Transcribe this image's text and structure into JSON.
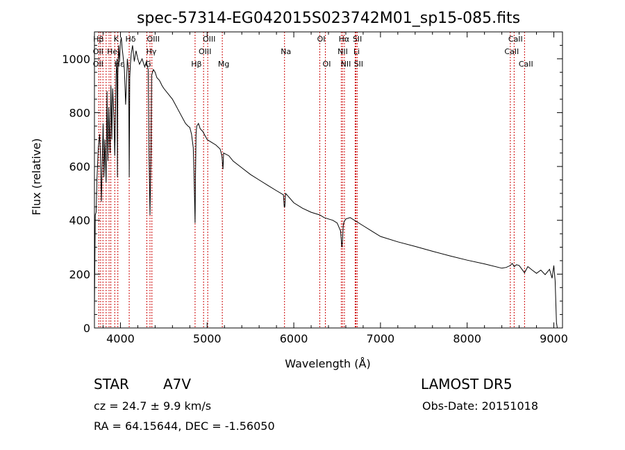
{
  "chart_data": {
    "type": "line",
    "title": "spec-57314-EG042015S023742M01_sp15-085.fits",
    "xlabel": "Wavelength (Å)",
    "ylabel": "Flux (relative)",
    "xlim": [
      3700,
      9100
    ],
    "ylim": [
      0,
      1100
    ],
    "xticks": [
      4000,
      5000,
      6000,
      7000,
      8000,
      9000
    ],
    "yticks": [
      0,
      200,
      400,
      600,
      800,
      1000
    ],
    "grid": false,
    "series": [
      {
        "name": "",
        "x": [
          3700,
          3710,
          3720,
          3730,
          3745,
          3760,
          3770,
          3780,
          3795,
          3800,
          3810,
          3820,
          3835,
          3845,
          3855,
          3865,
          3880,
          3890,
          3900,
          3910,
          3925,
          3935,
          3950,
          3960,
          3965,
          3970,
          3980,
          3990,
          4000,
          4010,
          4020,
          4030,
          4045,
          4060,
          4080,
          4095,
          4101,
          4108,
          4115,
          4125,
          4140,
          4160,
          4180,
          4200,
          4220,
          4250,
          4280,
          4300,
          4320,
          4330,
          4341,
          4352,
          4360,
          4380,
          4400,
          4420,
          4450,
          4480,
          4500,
          4550,
          4600,
          4650,
          4700,
          4750,
          4780,
          4800,
          4820,
          4840,
          4850,
          4861,
          4866,
          4872,
          4880,
          4900,
          4920,
          4950,
          5000,
          5050,
          5100,
          5150,
          5170,
          5183,
          5190,
          5250,
          5300,
          5400,
          5500,
          5600,
          5700,
          5800,
          5880,
          5890,
          5896,
          5905,
          5920,
          6000,
          6100,
          6200,
          6300,
          6350,
          6400,
          6450,
          6500,
          6540,
          6555,
          6563,
          6570,
          6580,
          6600,
          6650,
          6700,
          6800,
          6900,
          7000,
          7200,
          7400,
          7600,
          7800,
          8000,
          8200,
          8400,
          8450,
          8498,
          8520,
          8542,
          8570,
          8600,
          8662,
          8700,
          8750,
          8800,
          8850,
          8900,
          8950,
          8980,
          9000,
          9015,
          9030,
          9040
        ],
        "values": [
          70,
          420,
          430,
          560,
          670,
          720,
          640,
          470,
          690,
          760,
          560,
          700,
          540,
          880,
          620,
          820,
          650,
          900,
          700,
          890,
          780,
          640,
          940,
          1000,
          560,
          940,
          1050,
          990,
          1060,
          1080,
          1040,
          1010,
          960,
          830,
          1000,
          950,
          560,
          930,
          980,
          1020,
          1050,
          990,
          1030,
          1000,
          980,
          1000,
          970,
          990,
          960,
          640,
          420,
          650,
          940,
          960,
          950,
          930,
          920,
          900,
          890,
          870,
          850,
          820,
          790,
          760,
          750,
          745,
          720,
          670,
          560,
          390,
          560,
          720,
          750,
          760,
          740,
          730,
          700,
          690,
          680,
          665,
          640,
          590,
          650,
          640,
          620,
          595,
          570,
          550,
          530,
          510,
          495,
          450,
          450,
          500,
          495,
          465,
          445,
          430,
          420,
          410,
          405,
          400,
          390,
          360,
          300,
          330,
          380,
          395,
          405,
          410,
          400,
          380,
          360,
          340,
          320,
          303,
          285,
          268,
          252,
          238,
          222,
          225,
          232,
          240,
          228,
          235,
          232,
          205,
          228,
          215,
          203,
          215,
          198,
          218,
          185,
          232,
          175,
          20,
          0
        ],
        "color": "#000000"
      }
    ],
    "line_markers": {
      "color": "#cc0000",
      "lines": [
        {
          "label": "Hβ",
          "x": 3730,
          "row": 1
        },
        {
          "label": "OII",
          "x": 3727,
          "row": 2
        },
        {
          "label": "OII",
          "x": 3727,
          "row": 3
        },
        {
          "label": "K",
          "x": 3934,
          "row": 1
        },
        {
          "label": "Hδ",
          "x": 4101,
          "row": 1
        },
        {
          "label": "He",
          "x": 3889,
          "row": 2
        },
        {
          "label": "Hε",
          "x": 3970,
          "row": 3
        },
        {
          "label": "OIII",
          "x": 4363,
          "row": 1
        },
        {
          "label": "Hγ",
          "x": 4341,
          "row": 2
        },
        {
          "label": "G",
          "x": 4304,
          "row": 3
        },
        {
          "label": "OIII",
          "x": 5007,
          "row": 1
        },
        {
          "label": "OIII",
          "x": 4959,
          "row": 2
        },
        {
          "label": "Hβ",
          "x": 4861,
          "row": 3
        },
        {
          "label": "Mg",
          "x": 5175,
          "row": 3
        },
        {
          "label": "Na",
          "x": 5893,
          "row": 2
        },
        {
          "label": "OI",
          "x": 6300,
          "row": 1
        },
        {
          "label": "OI",
          "x": 6364,
          "row": 3
        },
        {
          "label": "Hα",
          "x": 6563,
          "row": 1
        },
        {
          "label": "SII",
          "x": 6717,
          "row": 1
        },
        {
          "label": "NII",
          "x": 6548,
          "row": 2
        },
        {
          "label": "Li",
          "x": 6708,
          "row": 2
        },
        {
          "label": "NII",
          "x": 6584,
          "row": 3
        },
        {
          "label": "SII",
          "x": 6731,
          "row": 3
        },
        {
          "label": "CaII",
          "x": 8542,
          "row": 1
        },
        {
          "label": "CaII",
          "x": 8498,
          "row": 2
        },
        {
          "label": "CaII",
          "x": 8662,
          "row": 3
        }
      ],
      "extra_x": [
        3750,
        3771,
        3798,
        3835,
        3869,
        3889,
        3934,
        3970,
        4101,
        4304,
        4341,
        4363,
        4861,
        4959,
        5007,
        5175,
        5893,
        6300,
        6364,
        6548,
        6563,
        6584,
        6708,
        6717,
        6731,
        8498,
        8542,
        8662
      ]
    }
  },
  "footer": {
    "object_class": "STAR",
    "subclass": "A7V",
    "survey": "LAMOST  DR5",
    "redshift_text": "cz = 24.7 ± 9.9 km/s",
    "obs_date": "Obs-Date: 20151018",
    "coords": "RA =  64.15644, DEC =  -1.56050"
  }
}
